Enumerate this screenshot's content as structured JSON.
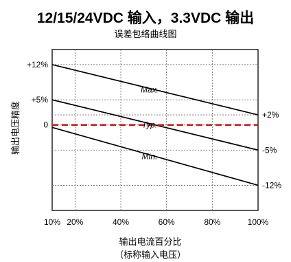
{
  "chart_data": {
    "type": "line",
    "title": "12/15/24VDC 输入，3.3VDC 输出",
    "subtitle": "误差包络曲线图",
    "ylabel": "输出电压精度",
    "xlabel": "输出电流百分比",
    "xlabel_sub": "（标称输入电压）",
    "x_ticks": [
      "10%",
      "20%",
      "40%",
      "60%",
      "80%",
      "100%"
    ],
    "x_tick_values": [
      10,
      20,
      40,
      60,
      80,
      100
    ],
    "y_ticks_left": [
      "+12%",
      "+5%",
      "0"
    ],
    "y_tick_values_left": [
      12,
      5,
      0
    ],
    "y_ticks_right": [
      "+2%",
      "-5%",
      "-12%"
    ],
    "y_tick_values_right": [
      2,
      -5,
      -12
    ],
    "xlim": [
      10,
      100
    ],
    "ylim": [
      -17,
      15
    ],
    "grid": true,
    "series": [
      {
        "name": "Max.",
        "x": [
          10,
          100
        ],
        "values": [
          12,
          2
        ],
        "style": "solid",
        "color": "#000000"
      },
      {
        "name": "Typ.",
        "x": [
          10,
          100
        ],
        "values": [
          5,
          -5
        ],
        "style": "solid",
        "color": "#000000"
      },
      {
        "name": "Min.",
        "x": [
          10,
          100
        ],
        "values": [
          -0.5,
          -12
        ],
        "style": "solid",
        "color": "#000000"
      },
      {
        "name": "",
        "x": [
          10,
          100
        ],
        "values": [
          0,
          0
        ],
        "style": "dashed",
        "color": "#cc1f1f"
      }
    ]
  }
}
